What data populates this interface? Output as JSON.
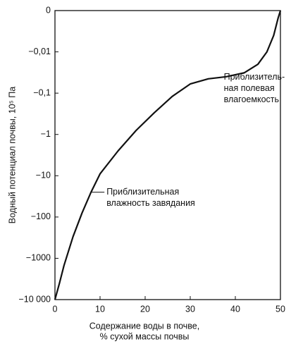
{
  "chart_data": {
    "type": "line",
    "x_label": "Содержание воды в почве,\n% сухой массы почвы",
    "y_label": "Водный потенциал почвы, 10⁵ Па",
    "x": [
      0,
      1,
      2,
      4,
      6,
      8,
      10,
      14,
      18,
      22,
      26,
      30,
      34,
      38,
      42,
      45,
      47,
      48.5,
      49.5,
      50
    ],
    "values": [
      -10000,
      -4000,
      -1500,
      -300,
      -80,
      -25,
      -9,
      -2.5,
      -0.8,
      -0.3,
      -0.12,
      -0.06,
      -0.045,
      -0.04,
      -0.032,
      -0.02,
      -0.01,
      -0.004,
      -0.0015,
      0
    ],
    "color": "#111111",
    "yscale": "neglog",
    "xlim": [
      0,
      50
    ],
    "xticks": [
      0,
      10,
      20,
      30,
      40,
      50
    ],
    "ylim": [
      -10000,
      0
    ],
    "yticks": [
      {
        "value": 0,
        "label": "0"
      },
      {
        "value": -0.01,
        "label": "−0,01"
      },
      {
        "value": -0.1,
        "label": "−0,1"
      },
      {
        "value": -1,
        "label": "−1"
      },
      {
        "value": -10,
        "label": "−10"
      },
      {
        "value": -100,
        "label": "−100"
      },
      {
        "value": -1000,
        "label": "−1000"
      },
      {
        "value": -10000,
        "label": "−10 000"
      }
    ],
    "annotations": [
      {
        "lines": [
          "Приблизитель-",
          "ная полевая",
          "влагоемкость"
        ],
        "x": 34,
        "y": -0.045
      },
      {
        "lines": [
          "Приблизительная",
          "влажность завядания"
        ],
        "x": 8,
        "y": -25
      }
    ]
  }
}
